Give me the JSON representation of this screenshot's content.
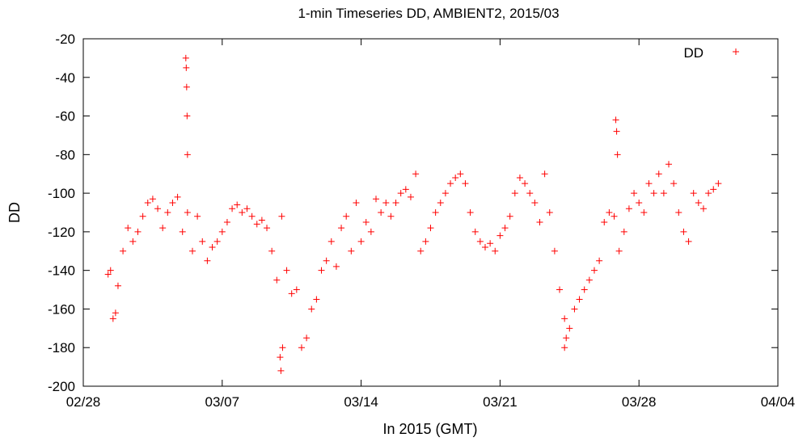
{
  "chart_data": {
    "type": "scatter",
    "title": "1-min Timeseries DD, AMBIENT2, 2015/03",
    "xlabel": "In 2015 (GMT)",
    "ylabel": "DD",
    "xlim": [
      "2015-02-28",
      "2015-04-04"
    ],
    "ylim": [
      -200,
      -20
    ],
    "x_ticks": [
      "02/28",
      "03/07",
      "03/14",
      "03/21",
      "03/28",
      "04/04"
    ],
    "y_ticks": [
      "-20",
      "-40",
      "-60",
      "-80",
      "-100",
      "-120",
      "-140",
      "-160",
      "-180",
      "-200"
    ],
    "grid": false,
    "legend_position": "top-right",
    "series": [
      {
        "name": "DD",
        "color": "#ff0000",
        "marker": "+",
        "x": [
          "2015-03-01T06:00",
          "2015-03-01T09:00",
          "2015-03-01T12:00",
          "2015-03-01T15:00",
          "2015-03-01T18:00",
          "2015-03-02T00:00",
          "2015-03-02T06:00",
          "2015-03-02T12:00",
          "2015-03-02T18:00",
          "2015-03-03T00:00",
          "2015-03-03T06:00",
          "2015-03-03T12:00",
          "2015-03-03T18:00",
          "2015-03-04T00:00",
          "2015-03-04T06:00",
          "2015-03-04T12:00",
          "2015-03-04T18:00",
          "2015-03-05T00:00",
          "2015-03-05T06:00",
          "2015-03-05T12:00",
          "2015-03-05T18:00",
          "2015-03-06T00:00",
          "2015-03-06T06:00",
          "2015-03-06T12:00",
          "2015-03-06T18:00",
          "2015-03-07T00:00",
          "2015-03-07T06:00",
          "2015-03-07T12:00",
          "2015-03-07T18:00",
          "2015-03-08T00:00",
          "2015-03-08T06:00",
          "2015-03-08T12:00",
          "2015-03-08T18:00",
          "2015-03-09T00:00",
          "2015-03-09T06:00",
          "2015-03-09T12:00",
          "2015-03-09T18:00",
          "2015-03-10T00:00",
          "2015-03-10T06:00",
          "2015-03-10T12:00",
          "2015-03-10T18:00",
          "2015-03-11T00:00",
          "2015-03-11T06:00",
          "2015-03-11T12:00",
          "2015-03-11T18:00",
          "2015-03-12T00:00",
          "2015-03-12T06:00",
          "2015-03-12T12:00",
          "2015-03-12T18:00",
          "2015-03-13T00:00",
          "2015-03-13T06:00",
          "2015-03-13T12:00",
          "2015-03-13T18:00",
          "2015-03-14T00:00",
          "2015-03-14T06:00",
          "2015-03-14T12:00",
          "2015-03-14T18:00",
          "2015-03-15T00:00",
          "2015-03-15T06:00",
          "2015-03-15T12:00",
          "2015-03-15T18:00",
          "2015-03-16T00:00",
          "2015-03-16T06:00",
          "2015-03-16T12:00",
          "2015-03-16T18:00",
          "2015-03-17T00:00",
          "2015-03-17T06:00",
          "2015-03-17T12:00",
          "2015-03-17T18:00",
          "2015-03-18T00:00",
          "2015-03-18T06:00",
          "2015-03-18T12:00",
          "2015-03-18T18:00",
          "2015-03-19T00:00",
          "2015-03-19T06:00",
          "2015-03-19T12:00",
          "2015-03-19T18:00",
          "2015-03-20T00:00",
          "2015-03-20T06:00",
          "2015-03-20T12:00",
          "2015-03-20T18:00",
          "2015-03-21T00:00",
          "2015-03-21T06:00",
          "2015-03-21T12:00",
          "2015-03-21T18:00",
          "2015-03-22T00:00",
          "2015-03-22T06:00",
          "2015-03-22T12:00",
          "2015-03-22T18:00",
          "2015-03-23T00:00",
          "2015-03-23T06:00",
          "2015-03-23T12:00",
          "2015-03-23T18:00",
          "2015-03-24T00:00",
          "2015-03-24T06:00",
          "2015-03-24T12:00",
          "2015-03-24T18:00",
          "2015-03-25T00:00",
          "2015-03-25T06:00",
          "2015-03-25T12:00",
          "2015-03-25T18:00",
          "2015-03-26T00:00",
          "2015-03-26T06:00",
          "2015-03-26T12:00",
          "2015-03-26T18:00",
          "2015-03-27T00:00",
          "2015-03-27T06:00",
          "2015-03-27T12:00",
          "2015-03-27T18:00",
          "2015-03-28T00:00",
          "2015-03-28T06:00",
          "2015-03-28T12:00",
          "2015-03-28T18:00",
          "2015-03-29T00:00",
          "2015-03-29T06:00",
          "2015-03-29T12:00",
          "2015-03-29T18:00",
          "2015-03-30T00:00",
          "2015-03-30T06:00",
          "2015-03-30T12:00",
          "2015-03-30T18:00",
          "2015-03-31T00:00",
          "2015-03-31T06:00",
          "2015-03-31T12:00",
          "2015-03-31T18:00",
          "2015-04-01T00:00",
          "2015-03-05T04:00",
          "2015-03-05T04:30",
          "2015-03-05T05:00",
          "2015-03-05T05:30",
          "2015-03-05T06:00",
          "2015-03-26T20:00",
          "2015-03-26T21:00",
          "2015-03-26T22:00",
          "2015-03-09T22:00",
          "2015-03-09T23:00",
          "2015-03-10T01:00",
          "2015-03-24T06:00",
          "2015-03-24T08:00"
        ],
        "y": [
          -142,
          -140,
          -165,
          -162,
          -148,
          -130,
          -118,
          -125,
          -120,
          -112,
          -105,
          -103,
          -108,
          -118,
          -110,
          -105,
          -102,
          -120,
          -110,
          -130,
          -112,
          -125,
          -135,
          -128,
          -125,
          -120,
          -115,
          -108,
          -106,
          -110,
          -108,
          -112,
          -116,
          -114,
          -118,
          -130,
          -145,
          -112,
          -140,
          -152,
          -150,
          -180,
          -175,
          -160,
          -155,
          -140,
          -135,
          -125,
          -138,
          -118,
          -112,
          -130,
          -105,
          -125,
          -115,
          -120,
          -103,
          -110,
          -105,
          -112,
          -105,
          -100,
          -98,
          -102,
          -90,
          -130,
          -125,
          -118,
          -110,
          -105,
          -100,
          -95,
          -92,
          -90,
          -95,
          -110,
          -120,
          -125,
          -128,
          -126,
          -130,
          -122,
          -118,
          -112,
          -100,
          -92,
          -95,
          -100,
          -105,
          -115,
          -90,
          -110,
          -130,
          -150,
          -165,
          -170,
          -160,
          -155,
          -150,
          -145,
          -140,
          -135,
          -115,
          -110,
          -112,
          -130,
          -120,
          -108,
          -100,
          -105,
          -110,
          -95,
          -100,
          -90,
          -100,
          -85,
          -95,
          -110,
          -120,
          -125,
          -100,
          -105,
          -108,
          -100,
          -98,
          -95,
          -30,
          -35,
          -45,
          -60,
          -80,
          -62,
          -68,
          -80,
          -185,
          -192,
          -180,
          -180,
          -175
        ]
      }
    ]
  }
}
